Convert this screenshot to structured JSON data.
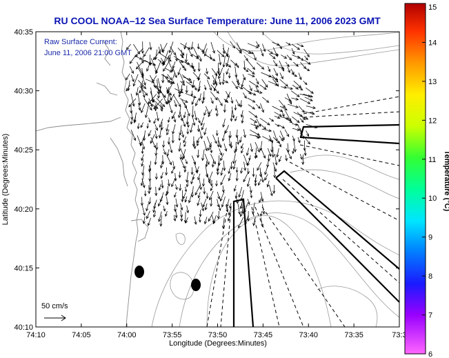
{
  "chart_data": {
    "type": "quiver",
    "title": "RU COOL  NOAA–12  Sea Surface Temperature:  June 11, 2006 2023 GMT",
    "annotation": [
      "Raw Surface Current:",
      "June 11, 2006 21:00 GMT"
    ],
    "xlabel": "Longitude (Degrees:Minutes)",
    "ylabel": "Latitude (Degrees:Minutes)",
    "x_ticks": [
      "74:10",
      "74:05",
      "74:00",
      "73:55",
      "73:50",
      "73:45",
      "73:40",
      "73:35",
      "73:3"
    ],
    "y_ticks": [
      "40:10",
      "40:15",
      "40:20",
      "40:25",
      "40:30",
      "40:35"
    ],
    "xlim": [
      -74.1667,
      -73.5
    ],
    "ylim": [
      40.1667,
      40.5833
    ],
    "scale_label": "50 cm/s",
    "colorbar": {
      "label": "Temperature (°C)",
      "ticks": [
        "6",
        "7",
        "8",
        "9",
        "10",
        "11",
        "12",
        "13",
        "14",
        "15"
      ],
      "range": [
        6,
        15
      ]
    },
    "colors": {
      "title": "#0a14b4",
      "annotation": "#1a2aa8",
      "arrows": "#000000",
      "contours": "#9a9a9a"
    }
  }
}
